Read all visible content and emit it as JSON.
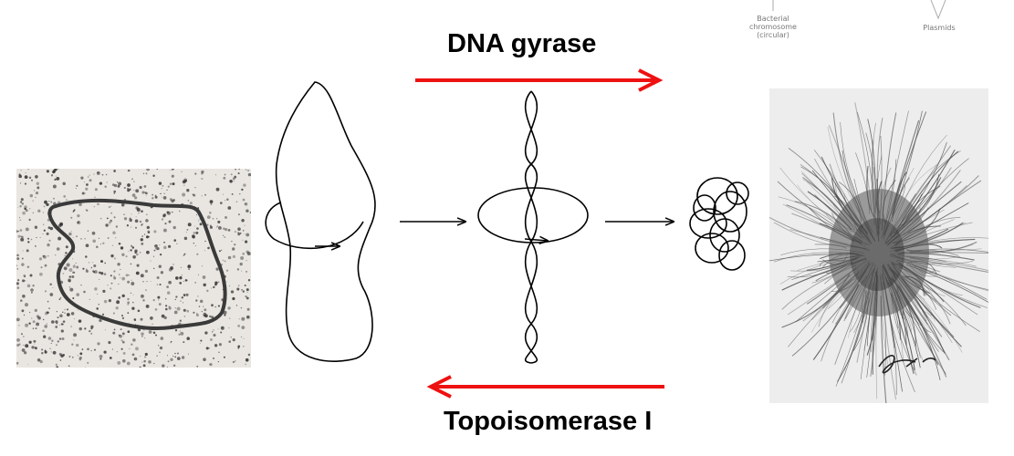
{
  "diagram": {
    "top_enzyme_label": "DNA gyrase",
    "bottom_enzyme_label": "Topoisomerase I",
    "inset_labels": {
      "chromosome_lines": [
        "Bacterial",
        "chromosome",
        "(circular)"
      ],
      "plasmids": "Plasmids"
    },
    "colors": {
      "enzyme_arrow": "#ee1111",
      "line_art": "#000000",
      "micrograph_background": "#e9e6e1",
      "micrograph_dna": "#3a3a3a"
    },
    "stages": [
      "relaxed-circle-micrograph",
      "relaxed-loop",
      "supercoiled-intermediate",
      "compact-coil",
      "nucleoid-micrograph"
    ]
  }
}
